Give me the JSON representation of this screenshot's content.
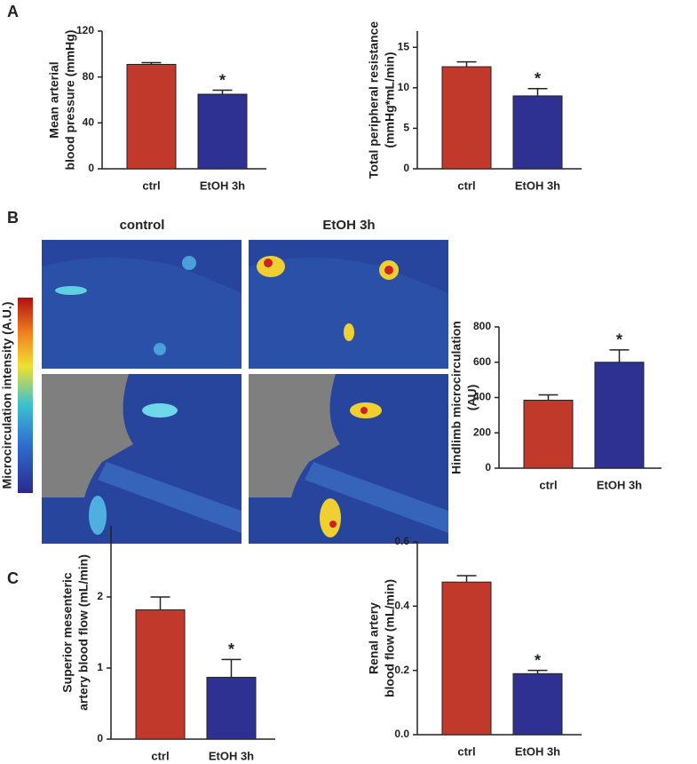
{
  "panel_labels": [
    "A",
    "B",
    "C"
  ],
  "image_panel": {
    "columns": [
      "control",
      "EtOH 3h"
    ],
    "colorbar_label": "Microcirculation intensity (A.U.)"
  },
  "chart_data": [
    {
      "type": "bar",
      "ylabel": [
        "Mean arterial",
        "blood pressure (mmHg)"
      ],
      "categories": [
        "ctrl",
        "EtOH 3h"
      ],
      "values": [
        91,
        65
      ],
      "errors": [
        1.5,
        3.5
      ],
      "colors": [
        "#c0392b",
        "#2e3192"
      ],
      "ylim": [
        0,
        120
      ],
      "yticks": [
        0,
        40,
        80,
        120
      ],
      "annotation": "*"
    },
    {
      "type": "bar",
      "ylabel": [
        "Total peripheral resistance",
        "(mmHg*mL/min)"
      ],
      "categories": [
        "ctrl",
        "EtOH 3h"
      ],
      "values": [
        12.6,
        9.0
      ],
      "errors": [
        0.6,
        0.9
      ],
      "colors": [
        "#c0392b",
        "#2e3192"
      ],
      "ylim": [
        0,
        17
      ],
      "yticks": [
        0,
        5,
        10,
        15
      ],
      "annotation": "*"
    },
    {
      "type": "bar",
      "ylabel": [
        "Hindlimb microcirculation",
        "(AU)"
      ],
      "categories": [
        "ctrl",
        "EtOH 3h"
      ],
      "values": [
        385,
        600
      ],
      "errors": [
        30,
        70
      ],
      "colors": [
        "#c0392b",
        "#2e3192"
      ],
      "ylim": [
        0,
        800
      ],
      "yticks": [
        0,
        200,
        400,
        600,
        800
      ],
      "annotation": "*"
    },
    {
      "type": "bar",
      "ylabel": [
        "Superior mesenteric",
        "artery blood flow (mL/min)"
      ],
      "categories": [
        "ctrl",
        "EtOH 3h"
      ],
      "values": [
        1.82,
        0.87
      ],
      "errors": [
        0.18,
        0.25
      ],
      "colors": [
        "#c0392b",
        "#2e3192"
      ],
      "ylim": [
        0,
        3
      ],
      "yticks": [
        0,
        1,
        2
      ],
      "annotation": "*"
    },
    {
      "type": "bar",
      "ylabel": [
        "Renal artery",
        "blood flow (mL/min)"
      ],
      "categories": [
        "ctrl",
        "EtOH 3h"
      ],
      "values": [
        0.475,
        0.19
      ],
      "errors": [
        0.02,
        0.01
      ],
      "colors": [
        "#c0392b",
        "#2e3192"
      ],
      "ylim": [
        0,
        0.6
      ],
      "yticks": [
        {
          "value": 0,
          "label": "0.0"
        },
        0.2,
        0.4,
        0.6
      ],
      "annotation": "*"
    }
  ]
}
